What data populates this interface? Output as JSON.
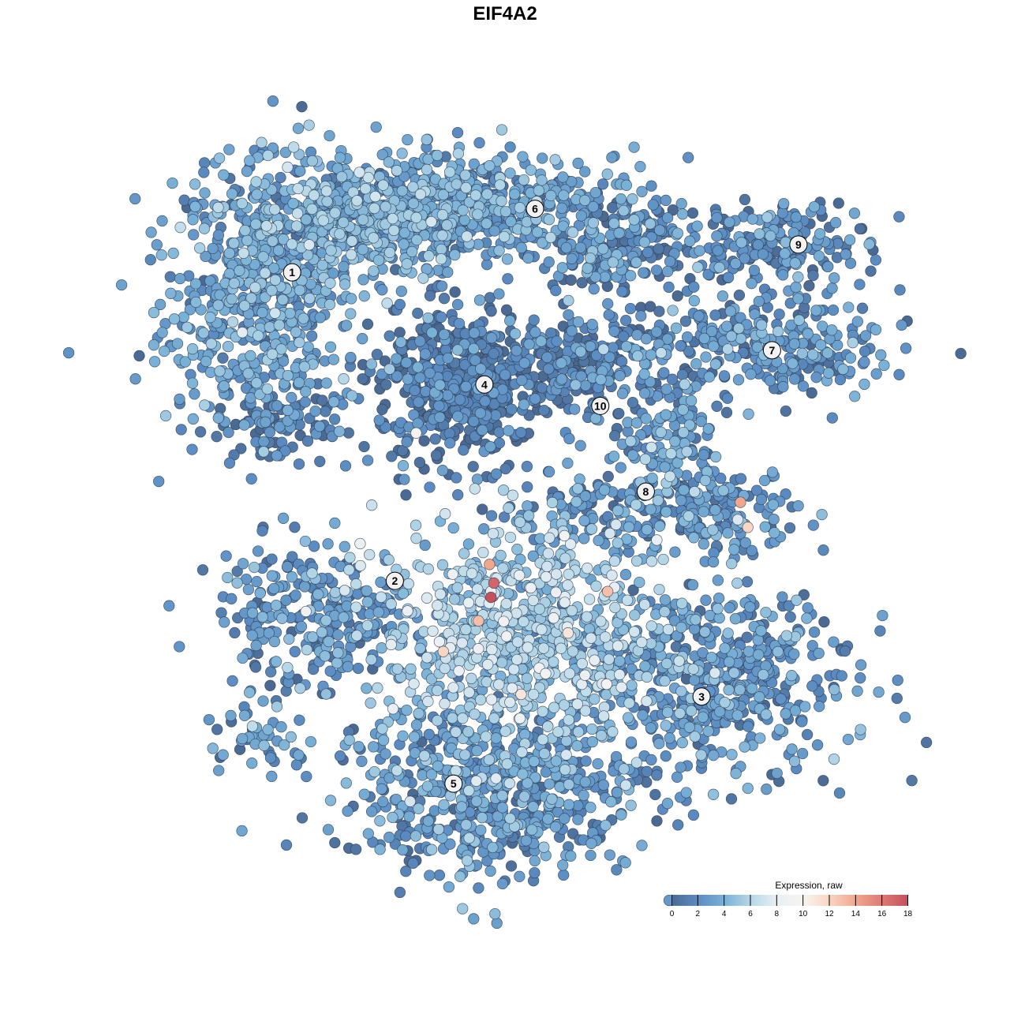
{
  "title": "EIF4A2",
  "chart_data": {
    "type": "scatter",
    "title": "EIF4A2",
    "xlabel": "",
    "ylabel": "",
    "axes_visible": false,
    "grid": false,
    "xlim": [
      0,
      100
    ],
    "ylim": [
      0,
      100
    ],
    "color_scale": {
      "title": "Expression, raw",
      "range": [
        0,
        18
      ],
      "ticks": [
        "0",
        "2",
        "4",
        "6",
        "8",
        "10",
        "12",
        "14",
        "16",
        "18"
      ],
      "stops": [
        "#4b6a93",
        "#5b8cc2",
        "#79b0d6",
        "#b5d7e7",
        "#e9eff4",
        "#f7f4f2",
        "#f9d5c3",
        "#f1a78e",
        "#dd7a73",
        "#c6505e"
      ],
      "placement": "bottom-right"
    },
    "point_style": {
      "fill_by": "expression",
      "outline": "#2f3e52"
    },
    "clusters": [
      {
        "label": "1",
        "label_pos": [
          18.3,
          82.3
        ],
        "blobs": [
          {
            "center": [
              14.0,
              78.5
            ],
            "spread": [
              6.5,
              8.8
            ],
            "n": 520,
            "mean_expr": 3.2
          },
          {
            "center": [
              26.9,
              89.5
            ],
            "spread": [
              8.6,
              4.4
            ],
            "n": 420,
            "mean_expr": 3.6
          },
          {
            "center": [
              16.1,
              60.8
            ],
            "spread": [
              4.3,
              2.8
            ],
            "n": 110,
            "mean_expr": 1.4
          }
        ]
      },
      {
        "label": "6",
        "label_pos": [
          51.4,
          91.2
        ],
        "blobs": [
          {
            "center": [
              43.0,
              91.6
            ],
            "spread": [
              11.8,
              3.9
            ],
            "n": 520,
            "mean_expr": 3.0
          },
          {
            "center": [
              62.4,
              86.2
            ],
            "spread": [
              5.4,
              3.3
            ],
            "n": 160,
            "mean_expr": 2.0
          }
        ]
      },
      {
        "label": "4",
        "label_pos": [
          44.5,
          66.6
        ],
        "blobs": [
          {
            "center": [
              40.9,
              66.3
            ],
            "spread": [
              5.4,
              5.5
            ],
            "n": 520,
            "mean_expr": 0.9
          }
        ]
      },
      {
        "label": "10",
        "label_pos": [
          60.3,
          63.6
        ],
        "blobs": [
          {
            "center": [
              60.2,
              68.5
            ],
            "spread": [
              4.8,
              5.0
            ],
            "n": 150,
            "mean_expr": 1.4
          },
          {
            "center": [
              54.8,
              70.7
            ],
            "spread": [
              4.3,
              2.2
            ],
            "n": 80,
            "mean_expr": 1.2
          }
        ]
      },
      {
        "label": "9",
        "label_pos": [
          87.3,
          86.2
        ],
        "blobs": [
          {
            "center": [
              84.9,
              86.2
            ],
            "spread": [
              6.5,
              2.8
            ],
            "n": 180,
            "mean_expr": 2.0
          }
        ]
      },
      {
        "label": "7",
        "label_pos": [
          83.7,
          71.4
        ],
        "blobs": [
          {
            "center": [
              81.7,
              72.0
            ],
            "spread": [
              9.7,
              3.9
            ],
            "n": 290,
            "mean_expr": 2.2
          }
        ]
      },
      {
        "label": "8",
        "label_pos": [
          66.5,
          51.6
        ],
        "blobs": [
          {
            "center": [
              69.9,
              58.6
            ],
            "spread": [
              3.2,
              5.5
            ],
            "n": 120,
            "mean_expr": 3.0
          },
          {
            "center": [
              77.4,
              48.6
            ],
            "spread": [
              4.8,
              2.8
            ],
            "n": 130,
            "mean_expr": 2.5
          },
          {
            "center": [
              60.2,
              48.6
            ],
            "spread": [
              6.5,
              3.3
            ],
            "n": 130,
            "mean_expr": 2.0
          }
        ]
      },
      {
        "label": "2",
        "label_pos": [
          32.3,
          39.1
        ],
        "blobs": [
          {
            "center": [
              21.5,
              34.3
            ],
            "spread": [
              6.5,
              5.0
            ],
            "n": 260,
            "mean_expr": 2.4
          },
          {
            "center": [
              14.0,
              17.7
            ],
            "spread": [
              4.3,
              2.2
            ],
            "n": 45,
            "mean_expr": 3.0
          },
          {
            "center": [
              49.5,
              32.0
            ],
            "spread": [
              9.7,
              7.7
            ],
            "n": 720,
            "mean_expr": 5.3
          }
        ]
      },
      {
        "label": "3",
        "label_pos": [
          74.1,
          22.9
        ],
        "blobs": [
          {
            "center": [
              75.3,
              25.4
            ],
            "spread": [
              9.7,
              6.6
            ],
            "n": 520,
            "mean_expr": 2.4
          }
        ]
      },
      {
        "label": "5",
        "label_pos": [
          40.3,
          10.7
        ],
        "blobs": [
          {
            "center": [
              45.2,
              9.9
            ],
            "spread": [
              10.8,
              6.1
            ],
            "n": 620,
            "mean_expr": 2.6
          }
        ]
      }
    ],
    "high_expression_points": [
      {
        "x": 45.2,
        "y": 41.4,
        "expr": 14
      },
      {
        "x": 45.8,
        "y": 38.8,
        "expr": 17
      },
      {
        "x": 45.4,
        "y": 36.8,
        "expr": 18
      },
      {
        "x": 43.7,
        "y": 33.5,
        "expr": 13
      },
      {
        "x": 38.9,
        "y": 29.2,
        "expr": 12
      },
      {
        "x": 55.9,
        "y": 31.8,
        "expr": 11
      },
      {
        "x": 61.3,
        "y": 37.6,
        "expr": 13
      },
      {
        "x": 79.4,
        "y": 50.1,
        "expr": 14
      },
      {
        "x": 80.4,
        "y": 46.6,
        "expr": 12
      },
      {
        "x": 49.5,
        "y": 23.2,
        "expr": 11
      },
      {
        "x": 35.2,
        "y": 59.8,
        "expr": 10
      }
    ]
  }
}
